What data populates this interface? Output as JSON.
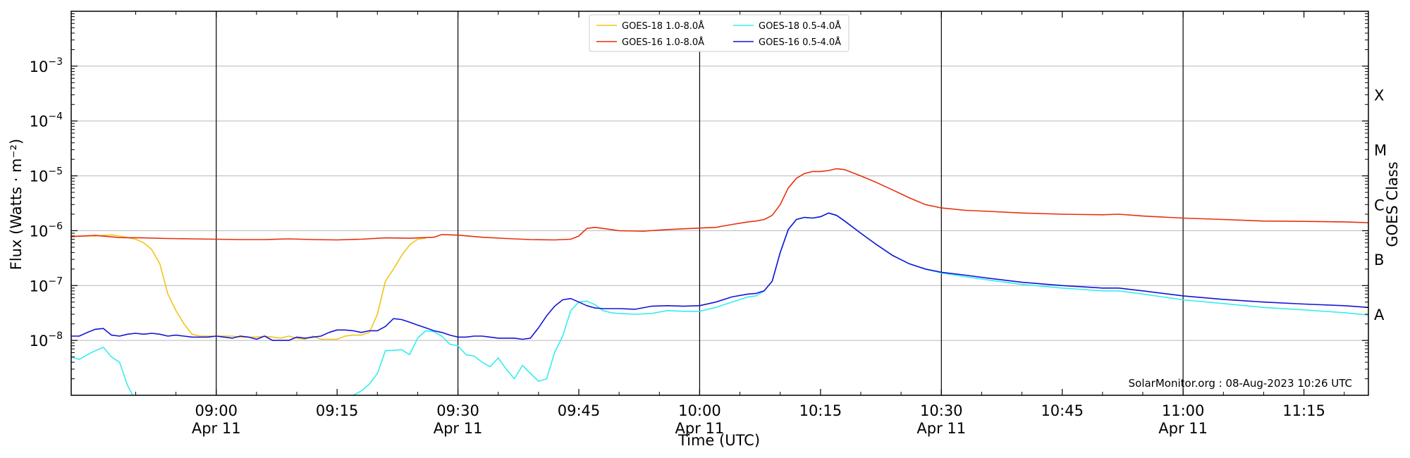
{
  "chart_data": {
    "type": "line",
    "title": "",
    "xlabel": "Time (UTC)",
    "ylabel": "Flux (Watts · m⁻²)",
    "ylabel_right": "GOES Class",
    "yscale": "log",
    "ylim": [
      1e-09,
      0.01
    ],
    "xlim": [
      "08:42",
      "11:23"
    ],
    "grid": "horizontal at decades",
    "credit": "SolarMonitor.org : 08-Aug-2023 10:26 UTC",
    "y_ticks": [
      {
        "value": 1e-08,
        "label": "10",
        "exp": "−8"
      },
      {
        "value": 1e-07,
        "label": "10",
        "exp": "−7"
      },
      {
        "value": 1e-06,
        "label": "10",
        "exp": "−6"
      },
      {
        "value": 1e-05,
        "label": "10",
        "exp": "−5"
      },
      {
        "value": 0.0001,
        "label": "10",
        "exp": "−4"
      },
      {
        "value": 0.001,
        "label": "10",
        "exp": "−3"
      }
    ],
    "x_ticks": [
      {
        "time": "09:00",
        "label": "09:00",
        "sublabel": "Apr 11",
        "vline": true
      },
      {
        "time": "09:15",
        "label": "09:15",
        "sublabel": "",
        "vline": false
      },
      {
        "time": "09:30",
        "label": "09:30",
        "sublabel": "Apr 11",
        "vline": true
      },
      {
        "time": "09:45",
        "label": "09:45",
        "sublabel": "",
        "vline": false
      },
      {
        "time": "10:00",
        "label": "10:00",
        "sublabel": "Apr 11",
        "vline": true
      },
      {
        "time": "10:15",
        "label": "10:15",
        "sublabel": "",
        "vline": false
      },
      {
        "time": "10:30",
        "label": "10:30",
        "sublabel": "Apr 11",
        "vline": true
      },
      {
        "time": "10:45",
        "label": "10:45",
        "sublabel": "",
        "vline": false
      },
      {
        "time": "11:00",
        "label": "11:00",
        "sublabel": "Apr 11",
        "vline": true
      },
      {
        "time": "11:15",
        "label": "11:15",
        "sublabel": "",
        "vline": false
      }
    ],
    "goes_classes": [
      {
        "label": "A",
        "y": 3e-08
      },
      {
        "label": "B",
        "y": 3e-07
      },
      {
        "label": "C",
        "y": 3e-06
      },
      {
        "label": "M",
        "y": 3e-05
      },
      {
        "label": "X",
        "y": 0.0003
      }
    ],
    "series": [
      {
        "name": "GOES-18 1.0-8.0Å",
        "color": "#f2c418",
        "x": [
          "08:42",
          "08:43",
          "08:44",
          "08:45",
          "08:46",
          "08:47",
          "08:48",
          "08:49",
          "08:50",
          "08:51",
          "08:52",
          "08:53",
          "08:54",
          "08:55",
          "08:56",
          "08:57",
          "08:58",
          "08:59",
          "09:00",
          "09:01",
          "09:02",
          "09:03",
          "09:04",
          "09:05",
          "09:06",
          "09:07",
          "09:08",
          "09:09",
          "09:10",
          "09:11",
          "09:12",
          "09:13",
          "09:14",
          "09:15",
          "09:16",
          "09:17",
          "09:18",
          "09:19",
          "09:20",
          "09:21",
          "09:22",
          "09:23",
          "09:24",
          "09:25",
          "09:26"
        ],
        "y": [
          8e-07,
          8e-07,
          8e-07,
          8e-07,
          8.2e-07,
          8.4e-07,
          8e-07,
          7.5e-07,
          7e-07,
          6e-07,
          4.5e-07,
          2.5e-07,
          7e-08,
          3.5e-08,
          2e-08,
          1.3e-08,
          1.2e-08,
          1.2e-08,
          1.2e-08,
          1.2e-08,
          1.2e-08,
          1.15e-08,
          1.15e-08,
          1.15e-08,
          1.2e-08,
          1.15e-08,
          1.1e-08,
          1.2e-08,
          1.1e-08,
          1.05e-08,
          1.2e-08,
          1.05e-08,
          1.05e-08,
          1.05e-08,
          1.2e-08,
          1.25e-08,
          1.25e-08,
          1.4e-08,
          3e-08,
          1.2e-07,
          2e-07,
          3.5e-07,
          5.5e-07,
          7e-07,
          7.3e-07
        ]
      },
      {
        "name": "GOES-16 1.0-8.0Å",
        "color": "#e8300c",
        "x": [
          "08:42",
          "08:45",
          "08:48",
          "08:51",
          "08:54",
          "08:57",
          "09:00",
          "09:03",
          "09:06",
          "09:09",
          "09:12",
          "09:15",
          "09:18",
          "09:21",
          "09:24",
          "09:27",
          "09:28",
          "09:30",
          "09:33",
          "09:36",
          "09:39",
          "09:42",
          "09:44",
          "09:45",
          "09:46",
          "09:47",
          "09:48",
          "09:50",
          "09:53",
          "09:56",
          "09:59",
          "10:02",
          "10:04",
          "10:06",
          "10:07",
          "10:08",
          "10:09",
          "10:10",
          "10:11",
          "10:12",
          "10:13",
          "10:14",
          "10:15",
          "10:16",
          "10:17",
          "10:18",
          "10:20",
          "10:22",
          "10:24",
          "10:26",
          "10:28",
          "10:30",
          "10:33",
          "10:36",
          "10:40",
          "10:45",
          "10:50",
          "10:52",
          "10:55",
          "11:00",
          "11:05",
          "11:10",
          "11:15",
          "11:20",
          "11:23"
        ],
        "y": [
          7.8e-07,
          8.2e-07,
          7.5e-07,
          7.4e-07,
          7.2e-07,
          7.1e-07,
          7e-07,
          6.9e-07,
          6.9e-07,
          7.1e-07,
          6.9e-07,
          6.8e-07,
          7e-07,
          7.4e-07,
          7.3e-07,
          7.6e-07,
          8.5e-07,
          8.3e-07,
          7.6e-07,
          7.2e-07,
          6.9e-07,
          6.8e-07,
          7e-07,
          8e-07,
          1.1e-06,
          1.15e-06,
          1.1e-06,
          1e-06,
          9.8e-07,
          1.05e-06,
          1.1e-06,
          1.15e-06,
          1.3e-06,
          1.45e-06,
          1.5e-06,
          1.6e-06,
          1.9e-06,
          3e-06,
          6e-06,
          9e-06,
          1.1e-05,
          1.2e-05,
          1.2e-05,
          1.25e-05,
          1.35e-05,
          1.3e-05,
          1e-05,
          7.5e-06,
          5.5e-06,
          4e-06,
          3e-06,
          2.6e-06,
          2.35e-06,
          2.25e-06,
          2.1e-06,
          2e-06,
          1.95e-06,
          2e-06,
          1.85e-06,
          1.7e-06,
          1.6e-06,
          1.5e-06,
          1.48e-06,
          1.45e-06,
          1.4e-06
        ]
      },
      {
        "name": "GOES-18 0.5-4.0Å",
        "color": "#33eeee",
        "x": [
          "08:42",
          "08:43",
          "08:44",
          "08:45",
          "08:46",
          "08:47",
          "08:48",
          "08:49",
          "08:50",
          "08:51",
          "08:52",
          "09:06",
          "09:16",
          "09:17",
          "09:18",
          "09:19",
          "09:20",
          "09:21",
          "09:22",
          "09:23",
          "09:24",
          "09:25",
          "09:26",
          "09:27",
          "09:28",
          "09:29",
          "09:30",
          "09:31",
          "09:32",
          "09:33",
          "09:34",
          "09:35",
          "09:36",
          "09:37",
          "09:38",
          "09:39",
          "09:40",
          "09:41",
          "09:42",
          "09:43",
          "09:44",
          "09:45",
          "09:46",
          "09:47",
          "09:48",
          "09:49",
          "09:50",
          "09:52",
          "09:54",
          "09:56",
          "09:58",
          "10:00",
          "10:02",
          "10:04",
          "10:06",
          "10:07",
          "10:08",
          "10:09",
          "10:10",
          "10:11",
          "10:12",
          "10:13",
          "10:14",
          "10:15",
          "10:16",
          "10:17",
          "10:18",
          "10:20",
          "10:22",
          "10:24",
          "10:26",
          "10:28",
          "10:30",
          "10:33",
          "10:36",
          "10:40",
          "10:45",
          "10:50",
          "10:52",
          "10:55",
          "11:00",
          "11:05",
          "11:10",
          "11:15",
          "11:20",
          "11:23"
        ],
        "y": [
          5e-09,
          4.5e-09,
          5.5e-09,
          6.5e-09,
          7.5e-09,
          5e-09,
          4e-09,
          1.5e-09,
          8e-10,
          7e-10,
          7e-10,
          7e-10,
          7e-10,
          1e-09,
          1.2e-09,
          1.6e-09,
          2.5e-09,
          6.5e-09,
          6.6e-09,
          6.8e-09,
          5.5e-09,
          1.1e-08,
          1.5e-08,
          1.45e-08,
          1.2e-08,
          8.5e-09,
          8e-09,
          5.5e-09,
          5.2e-09,
          4e-09,
          3.3e-09,
          4.8e-09,
          3e-09,
          2e-09,
          3.5e-09,
          2.5e-09,
          1.8e-09,
          2e-09,
          6e-09,
          1.2e-08,
          3.5e-08,
          5e-08,
          5.2e-08,
          4.5e-08,
          3.5e-08,
          3.2e-08,
          3.1e-08,
          3e-08,
          3.1e-08,
          3.5e-08,
          3.4e-08,
          3.4e-08,
          4e-08,
          5e-08,
          6.2e-08,
          6.5e-08,
          8e-08,
          1.2e-07,
          4e-07,
          1.05e-06,
          1.6e-06,
          1.75e-06,
          1.7e-06,
          1.8e-06,
          2.1e-06,
          1.9e-06,
          1.5e-06,
          9e-07,
          5.5e-07,
          3.5e-07,
          2.5e-07,
          2e-07,
          1.7e-07,
          1.45e-07,
          1.25e-07,
          1.05e-07,
          9e-08,
          8e-08,
          8e-08,
          7e-08,
          5.5e-08,
          4.7e-08,
          4e-08,
          3.6e-08,
          3.2e-08,
          2.9e-08
        ]
      },
      {
        "name": "GOES-16 0.5-4.0Å",
        "color": "#1414d8",
        "x": [
          "08:42",
          "08:43",
          "08:44",
          "08:45",
          "08:46",
          "08:47",
          "08:48",
          "08:49",
          "08:50",
          "08:51",
          "08:52",
          "08:53",
          "08:54",
          "08:55",
          "08:56",
          "08:57",
          "08:58",
          "08:59",
          "09:00",
          "09:01",
          "09:02",
          "09:03",
          "09:04",
          "09:05",
          "09:06",
          "09:07",
          "09:08",
          "09:09",
          "09:10",
          "09:11",
          "09:12",
          "09:13",
          "09:14",
          "09:15",
          "09:16",
          "09:17",
          "09:18",
          "09:19",
          "09:20",
          "09:21",
          "09:22",
          "09:23",
          "09:24",
          "09:25",
          "09:26",
          "09:27",
          "09:28",
          "09:29",
          "09:30",
          "09:31",
          "09:32",
          "09:33",
          "09:34",
          "09:35",
          "09:36",
          "09:37",
          "09:38",
          "09:39",
          "09:40",
          "09:41",
          "09:42",
          "09:43",
          "09:44",
          "09:45",
          "09:46",
          "09:47",
          "09:48",
          "09:50",
          "09:52",
          "09:54",
          "09:56",
          "09:58",
          "10:00",
          "10:02",
          "10:04",
          "10:06",
          "10:07",
          "10:08",
          "10:09",
          "10:10",
          "10:11",
          "10:12",
          "10:13",
          "10:14",
          "10:15",
          "10:16",
          "10:17",
          "10:18",
          "10:20",
          "10:22",
          "10:24",
          "10:26",
          "10:28",
          "10:30",
          "10:33",
          "10:36",
          "10:40",
          "10:45",
          "10:50",
          "10:52",
          "10:55",
          "11:00",
          "11:05",
          "11:10",
          "11:15",
          "11:20",
          "11:23"
        ],
        "y": [
          1.2e-08,
          1.2e-08,
          1.4e-08,
          1.6e-08,
          1.65e-08,
          1.25e-08,
          1.2e-08,
          1.3e-08,
          1.35e-08,
          1.3e-08,
          1.35e-08,
          1.3e-08,
          1.2e-08,
          1.25e-08,
          1.2e-08,
          1.15e-08,
          1.15e-08,
          1.15e-08,
          1.2e-08,
          1.15e-08,
          1.1e-08,
          1.2e-08,
          1.15e-08,
          1.05e-08,
          1.2e-08,
          1e-08,
          1e-08,
          1e-08,
          1.15e-08,
          1.1e-08,
          1.15e-08,
          1.2e-08,
          1.4e-08,
          1.55e-08,
          1.55e-08,
          1.5e-08,
          1.4e-08,
          1.5e-08,
          1.5e-08,
          1.8e-08,
          2.5e-08,
          2.4e-08,
          2.15e-08,
          1.9e-08,
          1.7e-08,
          1.5e-08,
          1.4e-08,
          1.25e-08,
          1.15e-08,
          1.15e-08,
          1.2e-08,
          1.2e-08,
          1.15e-08,
          1.1e-08,
          1.1e-08,
          1.1e-08,
          1.05e-08,
          1.1e-08,
          1.7e-08,
          2.8e-08,
          4.2e-08,
          5.5e-08,
          5.8e-08,
          5e-08,
          4.3e-08,
          3.9e-08,
          3.8e-08,
          3.8e-08,
          3.7e-08,
          4.2e-08,
          4.3e-08,
          4.2e-08,
          4.3e-08,
          5e-08,
          6.2e-08,
          7e-08,
          7.2e-08,
          8e-08,
          1.2e-07,
          4e-07,
          1.05e-06,
          1.6e-06,
          1.75e-06,
          1.7e-06,
          1.8e-06,
          2.1e-06,
          1.9e-06,
          1.5e-06,
          9e-07,
          5.5e-07,
          3.5e-07,
          2.5e-07,
          2e-07,
          1.75e-07,
          1.55e-07,
          1.35e-07,
          1.15e-07,
          1e-07,
          9e-08,
          9e-08,
          8e-08,
          6.5e-08,
          5.6e-08,
          5e-08,
          4.6e-08,
          4.3e-08,
          4e-08
        ]
      }
    ],
    "legend": {
      "placement": "top-center",
      "items": [
        {
          "label": "GOES-18 1.0-8.0Å",
          "color": "#f2c418"
        },
        {
          "label": "GOES-18 0.5-4.0Å",
          "color": "#33eeee"
        },
        {
          "label": "GOES-16 1.0-8.0Å",
          "color": "#e8300c"
        },
        {
          "label": "GOES-16 0.5-4.0Å",
          "color": "#1414d8"
        }
      ]
    }
  }
}
